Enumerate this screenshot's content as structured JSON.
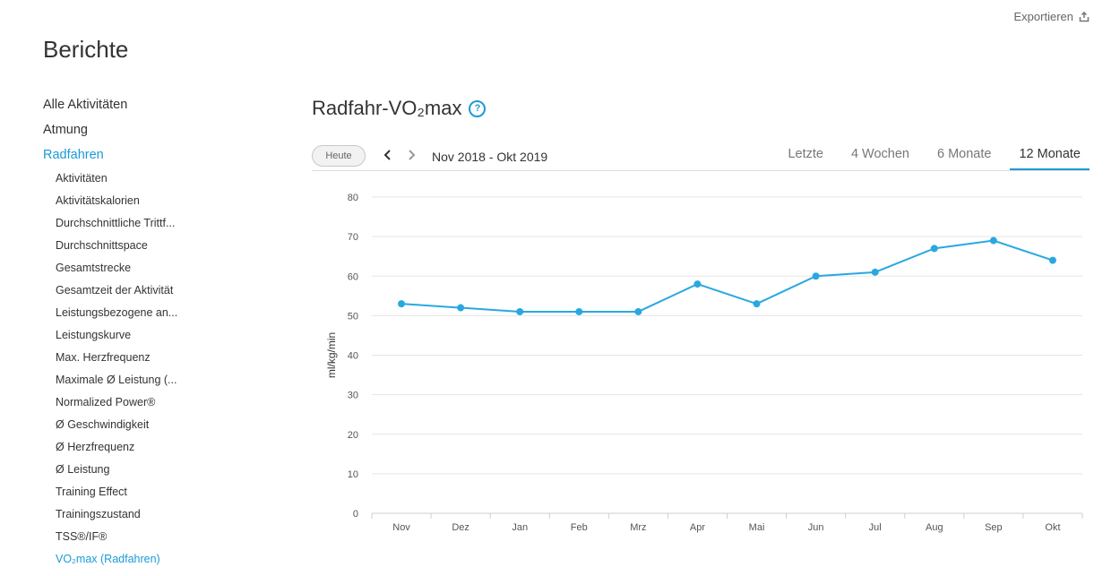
{
  "header": {
    "export_label": "Exportieren",
    "export_icon": "export-icon"
  },
  "page": {
    "title": "Berichte"
  },
  "nav": {
    "top_items": [
      {
        "label": "Alle Aktivitäten",
        "active": false
      },
      {
        "label": "Atmung",
        "active": false
      },
      {
        "label": "Radfahren",
        "active": true
      }
    ],
    "sub_items": [
      {
        "label": "Aktivitäten"
      },
      {
        "label": "Aktivitätskalorien"
      },
      {
        "label": "Durchschnittliche Trittf..."
      },
      {
        "label": "Durchschnittspace"
      },
      {
        "label": "Gesamtstrecke"
      },
      {
        "label": "Gesamtzeit der Aktivität"
      },
      {
        "label": "Leistungsbezogene an..."
      },
      {
        "label": "Leistungskurve"
      },
      {
        "label": "Max. Herzfrequenz"
      },
      {
        "label": "Maximale Ø Leistung (..."
      },
      {
        "label": "Normalized Power®"
      },
      {
        "label": "Ø Geschwindigkeit"
      },
      {
        "label": "Ø Herzfrequenz"
      },
      {
        "label": "Ø Leistung"
      },
      {
        "label": "Training Effect"
      },
      {
        "label": "Trainingszustand"
      },
      {
        "label": "TSS®/IF®"
      },
      {
        "label": "VO₂max (Radfahren)",
        "active": true
      }
    ]
  },
  "report": {
    "title": "Radfahr-VO₂max",
    "help_icon": "question-circle-icon",
    "today_label": "Heute",
    "range_label": "Nov 2018 - Okt 2019",
    "tabs": [
      {
        "label": "Letzte",
        "active": false
      },
      {
        "label": "4 Wochen",
        "active": false
      },
      {
        "label": "6 Monate",
        "active": false
      },
      {
        "label": "12 Monate",
        "active": true
      }
    ]
  },
  "colors": {
    "accent": "#1a9bd7",
    "line": "#29a8e0",
    "grid": "#e5e5e5",
    "text": "#333333"
  },
  "chart_data": {
    "type": "line",
    "categories": [
      "Nov",
      "Dez",
      "Jan",
      "Feb",
      "Mrz",
      "Apr",
      "Mai",
      "Jun",
      "Jul",
      "Aug",
      "Sep",
      "Okt"
    ],
    "series": [
      {
        "values": [
          53,
          52,
          51,
          51,
          51,
          58,
          53,
          60,
          61,
          67,
          69,
          64
        ]
      }
    ],
    "ylabel": "ml/kg/min",
    "ylim": [
      0,
      80
    ],
    "yticks": [
      0,
      10,
      20,
      30,
      40,
      50,
      60,
      70,
      80
    ],
    "grid": true,
    "legend": "none"
  }
}
